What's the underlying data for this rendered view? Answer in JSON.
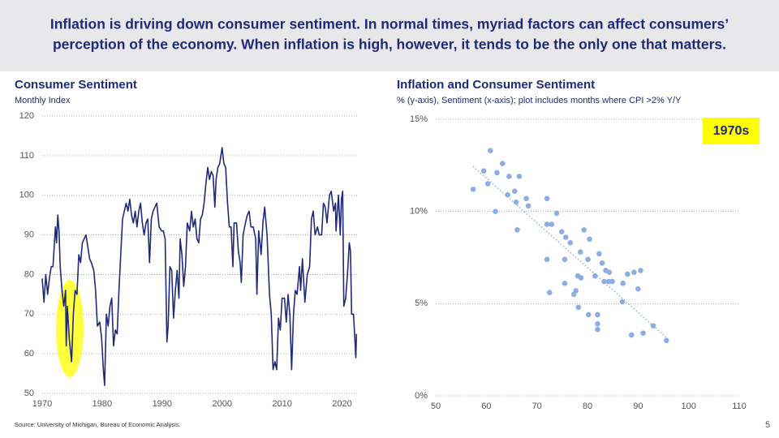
{
  "header": [
    "Inflation is driving down consumer sentiment. In normal times, myriad factors can affect consumers’",
    "perception of the economy. When inflation is high, however, it tends to be the only one that matters."
  ],
  "source": "Source: University of Michigan, Bureau of Economic Analysis.",
  "page_number": "5",
  "chart_data": [
    {
      "type": "line",
      "title": "Consumer Sentiment",
      "subtitle": "Monthly Index",
      "color": "#1f2a7a",
      "grid": true,
      "xlim": [
        1970,
        2022.5
      ],
      "xticks": [
        1970,
        1980,
        1990,
        2000,
        2010,
        2020
      ],
      "ylim": [
        50,
        120
      ],
      "yticks": [
        50,
        60,
        70,
        80,
        90,
        100,
        110,
        120
      ],
      "x": [
        1970.0,
        1970.3,
        1970.6,
        1970.9,
        1971.2,
        1971.5,
        1971.8,
        1972.0,
        1972.2,
        1972.4,
        1972.6,
        1972.8,
        1973.0,
        1973.3,
        1973.6,
        1973.9,
        1974.0,
        1974.2,
        1974.5,
        1974.9,
        1975.2,
        1975.5,
        1975.8,
        1976.1,
        1976.4,
        1976.7,
        1977.0,
        1977.3,
        1977.6,
        1977.9,
        1978.2,
        1978.6,
        1978.9,
        1979.2,
        1979.6,
        1979.9,
        1980.2,
        1980.4,
        1980.7,
        1981.0,
        1981.3,
        1981.6,
        1981.9,
        1982.2,
        1982.5,
        1982.8,
        1983.1,
        1983.4,
        1983.7,
        1984.0,
        1984.3,
        1984.6,
        1984.9,
        1985.2,
        1985.5,
        1985.8,
        1986.1,
        1986.4,
        1986.7,
        1987.0,
        1987.3,
        1987.6,
        1987.9,
        1988.2,
        1988.5,
        1988.8,
        1989.1,
        1989.5,
        1989.9,
        1990.2,
        1990.5,
        1990.8,
        1991.0,
        1991.3,
        1991.6,
        1991.9,
        1992.2,
        1992.5,
        1992.8,
        1993.0,
        1993.3,
        1993.6,
        1993.9,
        1994.2,
        1994.6,
        1994.9,
        1995.2,
        1995.5,
        1995.8,
        1996.1,
        1996.4,
        1996.7,
        1997.0,
        1997.3,
        1997.6,
        1997.9,
        1998.2,
        1998.5,
        1998.8,
        1999.0,
        1999.3,
        1999.6,
        2000.0,
        2000.3,
        2000.6,
        2000.9,
        2001.2,
        2001.5,
        2001.8,
        2002.0,
        2002.4,
        2002.7,
        2003.0,
        2003.2,
        2003.5,
        2003.9,
        2004.2,
        2004.5,
        2004.8,
        2005.2,
        2005.6,
        2005.8,
        2006.1,
        2006.5,
        2006.8,
        2007.1,
        2007.5,
        2007.9,
        2008.2,
        2008.5,
        2008.8,
        2009.1,
        2009.4,
        2009.7,
        2010.0,
        2010.4,
        2010.7,
        2011.0,
        2011.3,
        2011.6,
        2011.9,
        2012.2,
        2012.5,
        2012.9,
        2013.1,
        2013.4,
        2013.8,
        2014.2,
        2014.6,
        2014.9,
        2015.2,
        2015.5,
        2015.9,
        2016.2,
        2016.6,
        2016.9,
        2017.2,
        2017.5,
        2017.9,
        2018.2,
        2018.6,
        2018.9,
        2019.0,
        2019.4,
        2019.7,
        2019.9,
        2020.1,
        2020.3,
        2020.6,
        2020.9,
        2021.2,
        2021.4,
        2021.6,
        2021.9,
        2022.1,
        2022.3,
        2022.4
      ],
      "values": [
        79,
        73,
        80,
        75,
        79,
        82,
        82,
        87,
        92,
        88,
        95,
        91,
        82,
        76,
        72,
        76,
        62,
        72,
        64,
        58,
        70,
        76,
        75,
        85,
        83,
        88,
        89,
        90,
        87,
        84,
        83,
        81,
        76,
        67,
        68,
        64,
        56,
        52,
        70,
        67,
        72,
        74,
        62,
        66,
        65,
        76,
        85,
        94,
        96,
        98,
        96,
        99,
        95,
        93,
        96,
        92,
        96,
        98,
        93,
        90,
        93,
        94,
        83,
        94,
        96,
        97,
        98,
        92,
        91,
        91,
        89,
        63,
        67,
        82,
        81,
        69,
        76,
        81,
        74,
        89,
        85,
        77,
        82,
        93,
        91,
        96,
        92,
        94,
        89,
        88,
        94,
        95,
        98,
        103,
        107,
        104,
        106,
        105,
        97,
        104,
        107,
        108,
        112,
        108,
        107,
        98,
        92,
        92,
        82,
        93,
        93,
        86,
        83,
        78,
        90,
        93,
        95,
        96,
        92,
        92,
        89,
        75,
        91,
        85,
        93,
        97,
        90,
        75,
        70,
        56,
        58,
        56,
        69,
        66,
        74,
        74,
        68,
        75,
        70,
        56,
        70,
        76,
        75,
        82,
        76,
        84,
        73,
        80,
        82,
        94,
        96,
        90,
        92,
        90,
        90,
        98,
        97,
        93,
        100,
        101,
        96,
        98,
        91,
        100,
        90,
        99,
        101,
        72,
        74,
        80,
        88,
        86,
        70,
        70,
        65,
        59,
        65
      ]
    },
    {
      "type": "scatter",
      "title": "Inflation and Consumer Sentiment",
      "subtitle": "% (y-axis), Sentiment (x-axis); plot includes months where CPI >2% Y/Y",
      "color": "#8eaee3",
      "grid": true,
      "trendline": true,
      "annotation": "1970s",
      "xlim": [
        50,
        110
      ],
      "xticks": [
        50,
        60,
        70,
        80,
        90,
        100,
        110
      ],
      "ylim": [
        0,
        15
      ],
      "yticks": [
        {
          "value": 0,
          "label": "0%"
        },
        {
          "value": 5,
          "label": "5%"
        },
        {
          "value": 10,
          "label": "10%"
        },
        {
          "value": 15,
          "label": "15%"
        }
      ],
      "x": [
        57.4,
        59.5,
        60.3,
        60.8,
        61.8,
        62.1,
        63.2,
        64.2,
        64.5,
        65.6,
        65.9,
        66.1,
        66.5,
        67.9,
        68.3,
        72.0,
        72.0,
        72.0,
        72.9,
        72.5,
        73.9,
        74.9,
        75.7,
        75.5,
        75.5,
        76.6,
        77.3,
        77.7,
        78.1,
        78.6,
        78.7,
        79.3,
        78.2,
        80.1,
        80.4,
        80.2,
        81.5,
        82.0,
        82.0,
        82.0,
        82.3,
        82.9,
        83.3,
        83.6,
        84.3,
        84.2,
        84.9,
        87.0,
        86.9,
        87.9,
        89.2,
        88.7,
        90.0,
        90.5,
        91.0,
        93.0,
        95.6
      ],
      "values": [
        11.2,
        12.2,
        11.5,
        13.3,
        10.0,
        12.1,
        12.6,
        10.9,
        11.9,
        11.1,
        10.5,
        9.0,
        11.9,
        10.7,
        10.3,
        10.7,
        7.4,
        9.3,
        9.3,
        5.6,
        9.9,
        8.9,
        8.6,
        7.4,
        6.1,
        8.3,
        5.5,
        5.7,
        6.5,
        7.8,
        6.4,
        9.0,
        4.8,
        7.4,
        8.5,
        4.4,
        6.5,
        4.4,
        3.9,
        3.6,
        7.7,
        7.2,
        6.2,
        6.8,
        6.7,
        6.2,
        6.2,
        6.1,
        5.1,
        6.6,
        6.7,
        3.3,
        5.8,
        6.8,
        3.4,
        3.8,
        3.0
      ]
    }
  ]
}
